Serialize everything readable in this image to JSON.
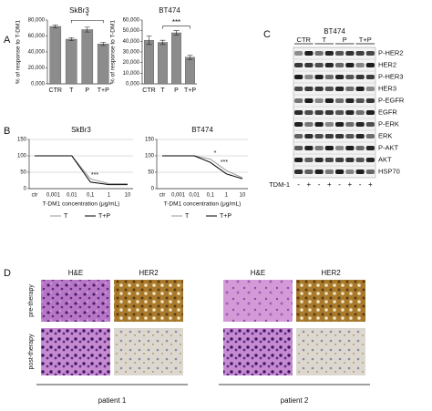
{
  "panels": [
    "A",
    "B",
    "C",
    "D"
  ],
  "chart_data": [
    {
      "type": "bar",
      "title": "SkBr3",
      "y_label": "% of response to T-DM1",
      "categories": [
        "CTR",
        "T",
        "P",
        "T+P"
      ],
      "values": [
        72,
        56,
        68,
        50
      ],
      "errors": [
        2,
        2,
        3,
        2
      ],
      "color": "#8c8c8c",
      "ylim": [
        0,
        80
      ],
      "yticks": [
        {
          "value": 0,
          "label": "0,000"
        },
        {
          "value": 20,
          "label": "20,000"
        },
        {
          "value": 40,
          "label": "40,000"
        },
        {
          "value": 60,
          "label": "60,000"
        },
        {
          "value": 80,
          "label": "80,000"
        }
      ],
      "annotations": [
        "*"
      ]
    },
    {
      "type": "bar",
      "title": "BT474",
      "y_label": "% of response to T-DM1",
      "categories": [
        "CTR",
        "T",
        "P",
        "T+P"
      ],
      "values": [
        41,
        39,
        48,
        25
      ],
      "errors": [
        4,
        2,
        2,
        2
      ],
      "color": "#8c8c8c",
      "ylim": [
        0,
        60
      ],
      "yticks": [
        {
          "value": 0,
          "label": "0,000"
        },
        {
          "value": 10,
          "label": "10,000"
        },
        {
          "value": 20,
          "label": "20,000"
        },
        {
          "value": 30,
          "label": "30,000"
        },
        {
          "value": 40,
          "label": "40,000"
        },
        {
          "value": 50,
          "label": "50,000"
        },
        {
          "value": 60,
          "label": "60,000"
        }
      ],
      "annotations": [
        "***"
      ]
    },
    {
      "type": "line",
      "title": "SkBr3",
      "x_label": "T-DM1 concentration (μg/mL)",
      "categories": [
        "ctr",
        "0,001",
        "0,01",
        "0,1",
        "1",
        "10"
      ],
      "series": [
        {
          "name": "T",
          "color": "#9a9a9a",
          "values": [
            100,
            100,
            100,
            30,
            15,
            15
          ]
        },
        {
          "name": "T+P",
          "color": "#000000",
          "values": [
            100,
            100,
            100,
            20,
            12,
            12
          ]
        }
      ],
      "ylim": [
        0,
        150
      ],
      "yticks": [
        0,
        50,
        100,
        150
      ],
      "grid": true,
      "annotations": [
        "***"
      ]
    },
    {
      "type": "line",
      "title": "BT474",
      "x_label": "T-DM1 concentration (μg/mL)",
      "categories": [
        "ctr",
        "0,001",
        "0,01",
        "0,1",
        "1",
        "10"
      ],
      "series": [
        {
          "name": "T",
          "color": "#9a9a9a",
          "values": [
            100,
            100,
            100,
            90,
            55,
            33
          ]
        },
        {
          "name": "T+P",
          "color": "#000000",
          "values": [
            100,
            100,
            100,
            80,
            45,
            30
          ]
        }
      ],
      "ylim": [
        0,
        150
      ],
      "yticks": [
        0,
        50,
        100,
        150
      ],
      "grid": true,
      "annotations": [
        "*",
        "***"
      ]
    }
  ],
  "blot": {
    "title": "BT474",
    "groups": [
      "CTR",
      "T",
      "P",
      "T+P"
    ],
    "rows": [
      "P-HER2",
      "HER2",
      "P-HER3",
      "HER3",
      "P-EGFR",
      "EGFR",
      "P-ERK",
      "ERK",
      "P-AKT",
      "AKT",
      "HSP70"
    ],
    "treatment_label": "TDM-1",
    "treatment": [
      "-",
      "+",
      "-",
      "+",
      "-",
      "+",
      "-",
      "+"
    ]
  },
  "histology": {
    "columns": [
      "H&E",
      "HER2",
      "H&E",
      "HER2"
    ],
    "rows": [
      "pre-therapy",
      "post-therapy"
    ],
    "patients": [
      "patient 1",
      "patient 2"
    ]
  }
}
